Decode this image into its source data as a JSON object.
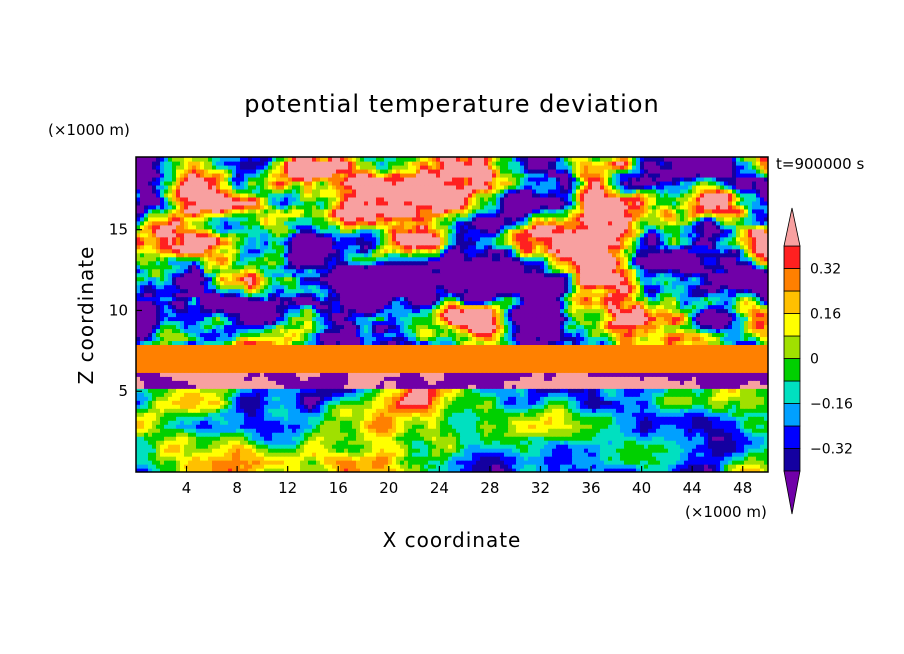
{
  "chart_data": {
    "type": "heatmap",
    "title": "potential temperature deviation",
    "xlabel": "X coordinate",
    "ylabel": "Z coordinate",
    "x_units": "(×1000 m)",
    "y_units": "(×1000 m)",
    "time_label": "t=900000 s",
    "xlim": [
      0,
      50
    ],
    "ylim": [
      0,
      19.5
    ],
    "x_ticks": [
      4,
      8,
      12,
      16,
      20,
      24,
      28,
      32,
      36,
      40,
      44,
      48
    ],
    "y_ticks": [
      5,
      10,
      15
    ],
    "colorbar": {
      "levels": [
        -0.4,
        -0.32,
        -0.24,
        -0.16,
        -0.08,
        0,
        0.08,
        0.16,
        0.24,
        0.32,
        0.4
      ],
      "tick_labels": [
        "0.32",
        "0.16",
        "0",
        "−0.16",
        "−0.32"
      ],
      "tick_values": [
        0.32,
        0.16,
        0,
        -0.16,
        -0.32
      ],
      "colors": [
        "#7000A8",
        "#1400A0",
        "#0000FF",
        "#00A0FF",
        "#00E0C0",
        "#00D000",
        "#A0E000",
        "#FFFF00",
        "#FFC000",
        "#FF8000",
        "#FF2020",
        "#F8A0A0"
      ],
      "extend": "both"
    },
    "bands": [
      {
        "z_from": 6.2,
        "z_to": 7.6,
        "value": 0.24
      },
      {
        "z_from": 7.6,
        "z_to": 8.0,
        "value": 0.3
      }
    ]
  }
}
